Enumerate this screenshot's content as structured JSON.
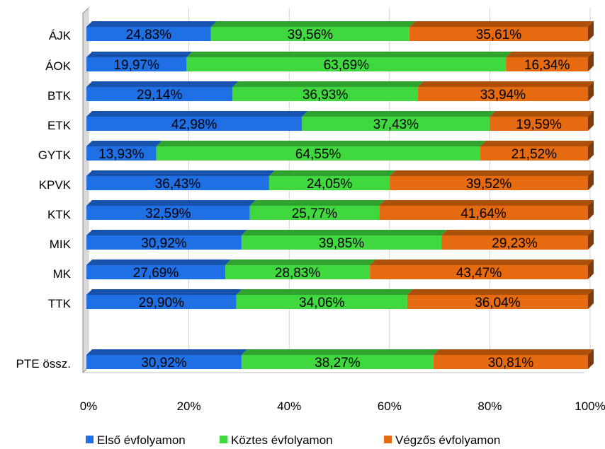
{
  "chart_data": {
    "type": "bar",
    "orientation": "horizontal",
    "stacked": "percent",
    "three_d": true,
    "categories": [
      "ÁJK",
      "ÁOK",
      "BTK",
      "ETK",
      "GYTK",
      "KPVK",
      "KTK",
      "MIK",
      "MK",
      "TTK",
      "PTE össz."
    ],
    "series": [
      {
        "name": "Első évfolyamon",
        "color": "#1f6fe5",
        "values": [
          24.83,
          19.97,
          29.14,
          42.98,
          13.93,
          36.43,
          32.59,
          30.92,
          27.69,
          29.9,
          30.92
        ],
        "labels": [
          "24,83%",
          "19,97%",
          "29,14%",
          "42,98%",
          "13,93%",
          "36,43%",
          "32,59%",
          "30,92%",
          "27,69%",
          "29,90%",
          "30,92%"
        ]
      },
      {
        "name": "Köztes évfolyamon",
        "color": "#3fd83f",
        "values": [
          39.56,
          63.69,
          36.93,
          37.43,
          64.55,
          24.05,
          25.77,
          39.85,
          28.83,
          34.06,
          38.27
        ],
        "labels": [
          "39,56%",
          "63,69%",
          "36,93%",
          "37,43%",
          "64,55%",
          "24,05%",
          "25,77%",
          "39,85%",
          "28,83%",
          "34,06%",
          "38,27%"
        ]
      },
      {
        "name": "Végzős évfolyamon",
        "color": "#e56a10",
        "values": [
          35.61,
          16.34,
          33.94,
          19.59,
          21.52,
          39.52,
          41.64,
          29.23,
          43.47,
          36.04,
          30.81
        ],
        "labels": [
          "35,61%",
          "16,34%",
          "33,94%",
          "19,59%",
          "21,52%",
          "39,52%",
          "41,64%",
          "29,23%",
          "43,47%",
          "36,04%",
          "30,81%"
        ]
      }
    ],
    "xlim": [
      0,
      100
    ],
    "x_ticks": [
      "0%",
      "20%",
      "40%",
      "60%",
      "80%",
      "100%"
    ],
    "grid": true,
    "legend_position": "bottom",
    "title": "",
    "xlabel": "",
    "ylabel": ""
  }
}
